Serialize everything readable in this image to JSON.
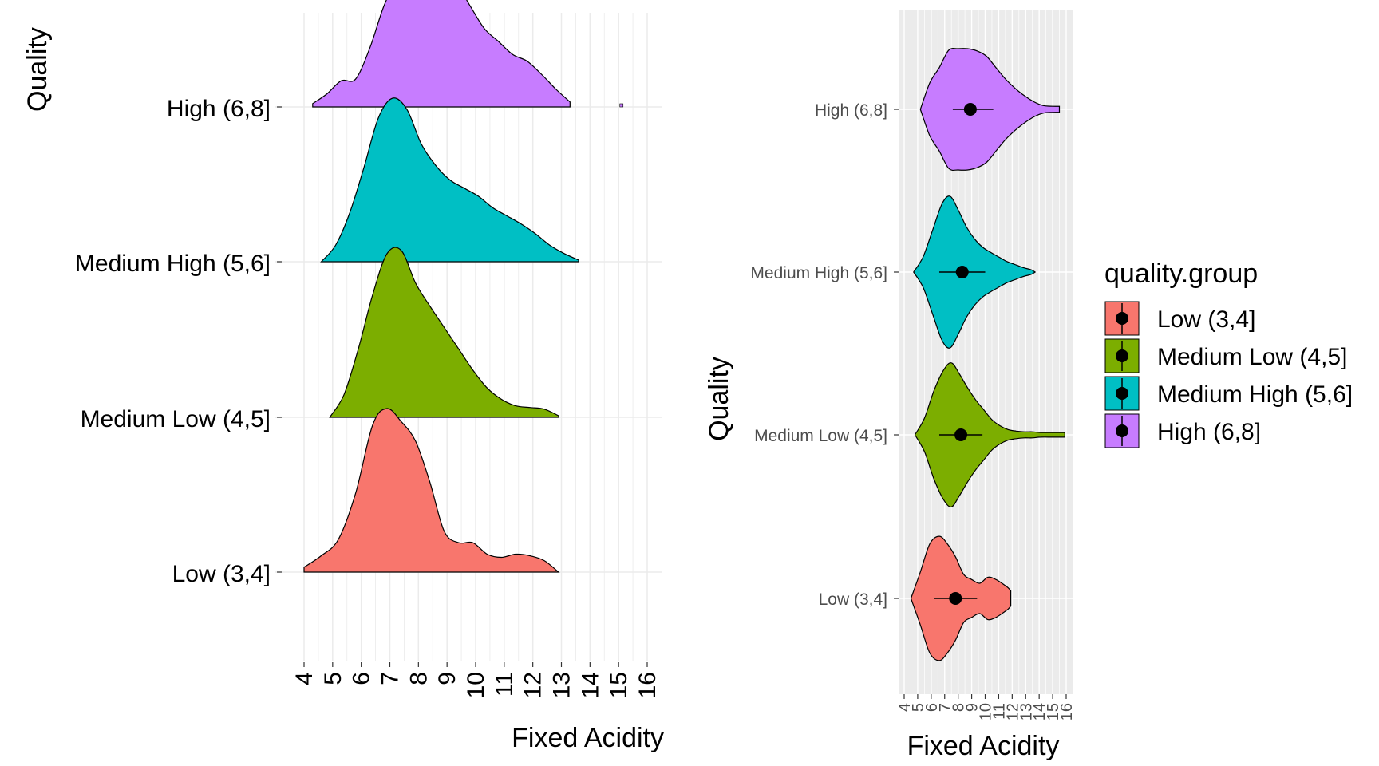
{
  "chart_data": [
    {
      "type": "ridgeline",
      "xlabel": "Fixed Acidity",
      "ylabel": "Quality",
      "xlim": [
        4,
        16
      ],
      "x_ticks": [
        "4",
        "5",
        "6",
        "7",
        "8",
        "9",
        "10",
        "11",
        "12",
        "13",
        "14",
        "15",
        "16"
      ],
      "grid": true,
      "categories": [
        "High (6,8]",
        "Medium High (5,6]",
        "Medium Low (4,5]",
        "Low (3,4]"
      ],
      "series": [
        {
          "name": "High (6,8]",
          "color": "#C77CFF",
          "x": [
            4.3,
            4.8,
            5.3,
            5.8,
            6.3,
            6.8,
            7.3,
            7.8,
            8.3,
            8.8,
            9.3,
            9.8,
            10.3,
            10.8,
            11.3,
            11.8,
            12.3,
            12.8,
            13.3
          ],
          "density": [
            0.02,
            0.08,
            0.16,
            0.17,
            0.36,
            0.62,
            0.79,
            0.81,
            0.81,
            0.81,
            0.76,
            0.62,
            0.48,
            0.4,
            0.32,
            0.28,
            0.2,
            0.11,
            0.03
          ],
          "outlier": {
            "x": 15.1,
            "density": 0.02
          }
        },
        {
          "name": "Medium High (5,6]",
          "color": "#00BFC4",
          "x": [
            4.6,
            5.1,
            5.6,
            6.1,
            6.6,
            7.1,
            7.6,
            8.1,
            8.6,
            9.1,
            9.6,
            10.1,
            10.6,
            11.1,
            11.6,
            12.1,
            12.6,
            13.1,
            13.6
          ],
          "density": [
            0.0,
            0.1,
            0.3,
            0.58,
            0.88,
            1.0,
            0.93,
            0.72,
            0.59,
            0.5,
            0.45,
            0.4,
            0.33,
            0.28,
            0.23,
            0.17,
            0.1,
            0.05,
            0.01
          ],
          "max_density": 1.0
        },
        {
          "name": "Medium Low (4,5]",
          "color": "#7CAE00",
          "x": [
            4.9,
            5.4,
            5.9,
            6.4,
            6.9,
            7.4,
            7.9,
            8.4,
            8.9,
            9.4,
            9.9,
            10.4,
            10.9,
            11.4,
            11.9,
            12.4,
            12.9
          ],
          "density": [
            0.0,
            0.14,
            0.42,
            0.75,
            1.0,
            1.02,
            0.82,
            0.68,
            0.55,
            0.42,
            0.29,
            0.18,
            0.11,
            0.07,
            0.06,
            0.05,
            0.01
          ]
        },
        {
          "name": "Low (3,4]",
          "color": "#F8766D",
          "x": [
            4.0,
            4.6,
            5.2,
            5.8,
            6.4,
            6.9,
            7.4,
            7.9,
            8.4,
            8.9,
            9.4,
            9.9,
            10.4,
            10.9,
            11.4,
            11.9,
            12.4,
            12.9
          ],
          "density": [
            0.03,
            0.1,
            0.2,
            0.48,
            0.9,
            1.0,
            0.92,
            0.8,
            0.55,
            0.25,
            0.18,
            0.18,
            0.11,
            0.09,
            0.11,
            0.1,
            0.07,
            0.0
          ]
        }
      ]
    },
    {
      "type": "violin",
      "xlabel": "Fixed Acidity",
      "ylabel": "Quality",
      "xlim": [
        4,
        16
      ],
      "x_ticks": [
        "4",
        "5",
        "6",
        "7",
        "8",
        "9",
        "10",
        "11",
        "12",
        "13",
        "14",
        "15",
        "16"
      ],
      "grid": true,
      "categories": [
        "Low (3,4]",
        "Medium Low (4,5]",
        "Medium High (5,6]",
        "High (6,8]"
      ],
      "series": [
        {
          "name": "Low (3,4]",
          "color": "#F8766D",
          "mean": 7.8,
          "ci_low": 6.2,
          "ci_high": 9.4,
          "violin_x": [
            4.5,
            5.2,
            5.9,
            6.6,
            7.2,
            7.8,
            8.4,
            9.0,
            9.6,
            10.2,
            10.8,
            11.4,
            11.7,
            11.9
          ],
          "violin_half_width": [
            0.0,
            0.35,
            0.72,
            0.82,
            0.72,
            0.55,
            0.32,
            0.25,
            0.2,
            0.28,
            0.25,
            0.18,
            0.14,
            0.1
          ]
        },
        {
          "name": "Medium Low (4,5]",
          "color": "#7CAE00",
          "mean": 8.2,
          "ci_low": 6.6,
          "ci_high": 9.8,
          "violin_x": [
            4.8,
            5.5,
            6.2,
            6.9,
            7.5,
            8.1,
            8.7,
            9.3,
            9.9,
            10.5,
            11.1,
            11.7,
            12.3,
            12.9,
            13.5,
            14.1,
            15.0,
            15.9
          ],
          "violin_half_width": [
            0.0,
            0.22,
            0.58,
            0.85,
            0.95,
            0.8,
            0.62,
            0.46,
            0.33,
            0.2,
            0.12,
            0.07,
            0.05,
            0.04,
            0.04,
            0.03,
            0.03,
            0.03
          ]
        },
        {
          "name": "Medium High (5,6]",
          "color": "#00BFC4",
          "mean": 8.3,
          "ci_low": 6.6,
          "ci_high": 10.0,
          "violin_x": [
            4.7,
            5.4,
            6.1,
            6.8,
            7.4,
            8.0,
            8.6,
            9.2,
            9.8,
            10.4,
            11.0,
            11.6,
            12.2,
            12.8,
            13.4,
            13.7
          ],
          "violin_half_width": [
            0.0,
            0.2,
            0.55,
            0.9,
            1.0,
            0.82,
            0.6,
            0.44,
            0.33,
            0.26,
            0.2,
            0.14,
            0.1,
            0.06,
            0.03,
            0.0
          ]
        },
        {
          "name": "High (6,8]",
          "color": "#C77CFF",
          "mean": 8.9,
          "ci_low": 7.6,
          "ci_high": 10.6,
          "violin_x": [
            5.2,
            5.9,
            6.6,
            7.3,
            8.0,
            8.7,
            9.4,
            10.1,
            10.8,
            11.5,
            12.2,
            12.9,
            13.6,
            14.3,
            15.0,
            15.5
          ],
          "violin_half_width": [
            0.0,
            0.35,
            0.55,
            0.78,
            0.8,
            0.8,
            0.77,
            0.7,
            0.55,
            0.4,
            0.28,
            0.18,
            0.1,
            0.05,
            0.04,
            0.04
          ]
        }
      ],
      "legend": {
        "title": "quality.group",
        "position": "right",
        "items": [
          "Low (3,4]",
          "Medium Low (4,5]",
          "Medium High (5,6]",
          "High (6,8]"
        ]
      }
    }
  ]
}
